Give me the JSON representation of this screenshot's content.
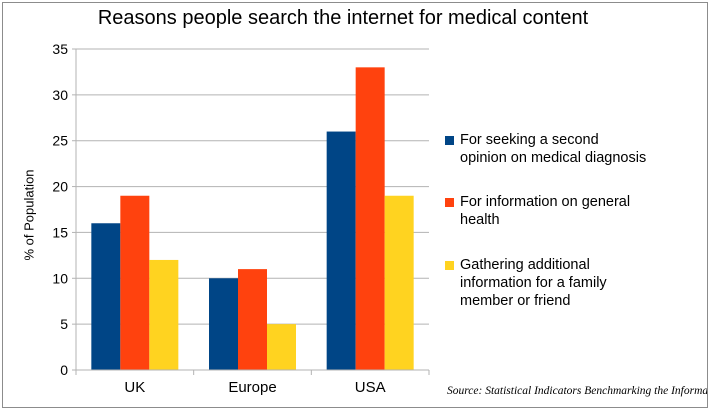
{
  "chart_data": {
    "type": "bar",
    "title": "Reasons people search the internet for medical content",
    "xlabel": "",
    "ylabel": "% of Population",
    "ylim": [
      0,
      35
    ],
    "yticks": [
      0,
      5,
      10,
      15,
      20,
      25,
      30,
      35
    ],
    "grid": true,
    "legend_position": "right",
    "categories": [
      "UK",
      "Europe",
      "USA"
    ],
    "series": [
      {
        "name": "For seeking a second opinion on medical diagnosis",
        "color": "#004586",
        "values": [
          16,
          10,
          26
        ]
      },
      {
        "name": "For information on general health",
        "color": "#ff420e",
        "values": [
          19,
          11,
          33
        ]
      },
      {
        "name": "Gathering additional information for a family member or friend",
        "color": "#ffd320",
        "values": [
          12,
          5,
          19
        ]
      }
    ],
    "legend_lines": [
      [
        "For seeking a second",
        "opinion on medical diagnosis"
      ],
      [
        "For information on general",
        "health"
      ],
      [
        "Gathering additional",
        "information for a family",
        "member or friend"
      ]
    ],
    "source": "Source: Statistical Indicators Benchmarking the Information Society"
  }
}
